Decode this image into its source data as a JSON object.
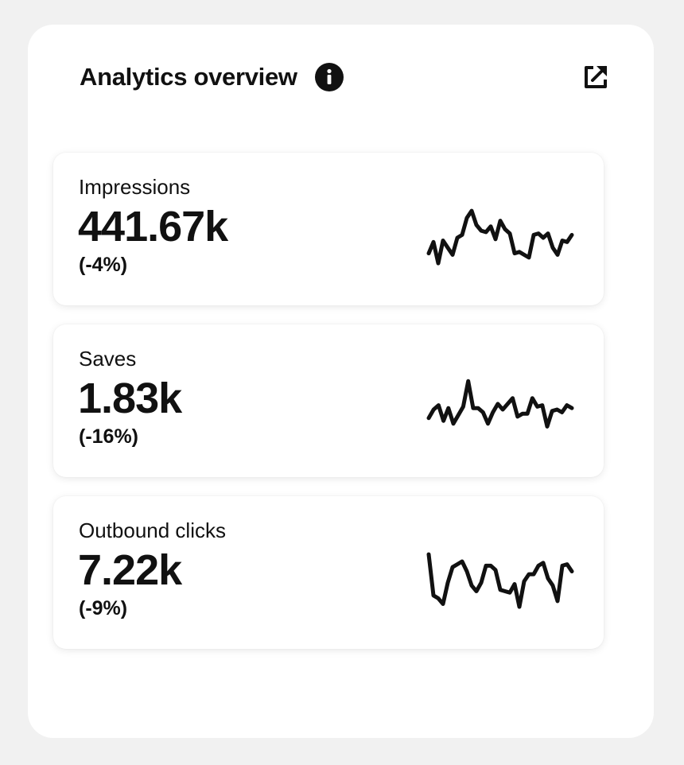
{
  "header": {
    "title": "Analytics overview",
    "info_icon": "info-icon",
    "external_link_icon": "external-link-icon"
  },
  "metrics": [
    {
      "label": "Impressions",
      "value": "441.67k",
      "change": "(-4%)",
      "trend": [
        42,
        58,
        28,
        60,
        50,
        40,
        64,
        68,
        92,
        102,
        82,
        74,
        72,
        80,
        62,
        88,
        76,
        70,
        42,
        44,
        40,
        36,
        68,
        70,
        64,
        70,
        50,
        40,
        60,
        58,
        68
      ]
    },
    {
      "label": "Saves",
      "value": "1.83k",
      "change": "(-16%)",
      "trend": [
        52,
        64,
        70,
        48,
        66,
        44,
        56,
        68,
        104,
        66,
        66,
        60,
        44,
        60,
        72,
        64,
        72,
        80,
        54,
        58,
        58,
        80,
        68,
        70,
        40,
        62,
        64,
        60,
        70,
        66
      ]
    },
    {
      "label": "Outbound clicks",
      "value": "7.22k",
      "change": "(-9%)",
      "trend": [
        102,
        44,
        40,
        32,
        62,
        84,
        88,
        92,
        78,
        58,
        50,
        62,
        86,
        86,
        80,
        52,
        50,
        48,
        60,
        28,
        64,
        74,
        74,
        86,
        90,
        68,
        58,
        36,
        86,
        88,
        78
      ]
    }
  ],
  "sparkline_color": "#111111"
}
